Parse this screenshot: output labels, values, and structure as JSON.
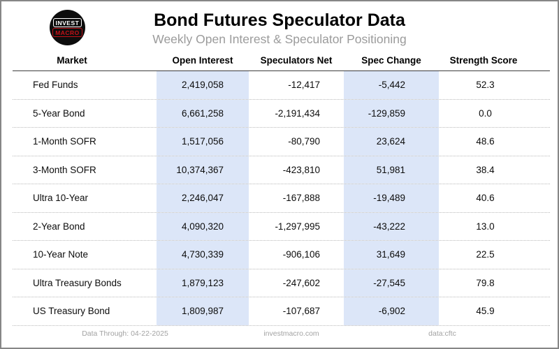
{
  "header": {
    "title": "Bond Futures Speculator Data",
    "subtitle": "Weekly Open Interest & Speculator Positioning",
    "logo": {
      "line1": "INVEST",
      "line2": "MACRO"
    }
  },
  "table": {
    "columns": [
      "Market",
      "Open Interest",
      "Speculators Net",
      "Spec Change",
      "Strength Score"
    ],
    "rows": [
      {
        "market": "Fed Funds",
        "open_interest": "2,419,058",
        "speculators_net": "-12,417",
        "spec_change": "-5,442",
        "strength_score": "52.3"
      },
      {
        "market": "5-Year Bond",
        "open_interest": "6,661,258",
        "speculators_net": "-2,191,434",
        "spec_change": "-129,859",
        "strength_score": "0.0"
      },
      {
        "market": "1-Month SOFR",
        "open_interest": "1,517,056",
        "speculators_net": "-80,790",
        "spec_change": "23,624",
        "strength_score": "48.6"
      },
      {
        "market": "3-Month SOFR",
        "open_interest": "10,374,367",
        "speculators_net": "-423,810",
        "spec_change": "51,981",
        "strength_score": "38.4"
      },
      {
        "market": "Ultra 10-Year",
        "open_interest": "2,246,047",
        "speculators_net": "-167,888",
        "spec_change": "-19,489",
        "strength_score": "40.6"
      },
      {
        "market": "2-Year Bond",
        "open_interest": "4,090,320",
        "speculators_net": "-1,297,995",
        "spec_change": "-43,222",
        "strength_score": "13.0"
      },
      {
        "market": "10-Year Note",
        "open_interest": "4,730,339",
        "speculators_net": "-906,106",
        "spec_change": "31,649",
        "strength_score": "22.5"
      },
      {
        "market": "Ultra Treasury Bonds",
        "open_interest": "1,879,123",
        "speculators_net": "-247,602",
        "spec_change": "-27,545",
        "strength_score": "79.8"
      },
      {
        "market": "US Treasury Bond",
        "open_interest": "1,809,987",
        "speculators_net": "-107,687",
        "spec_change": "-6,902",
        "strength_score": "45.9"
      }
    ]
  },
  "footer": {
    "data_through": "Data Through: 04-22-2025",
    "site": "investmacro.com",
    "source": "data:cftc"
  },
  "colors": {
    "highlight_column": "#dce6f8",
    "logo_red": "#c41118",
    "subtitle_gray": "#9b9b9b",
    "footer_gray": "#a2a2a2"
  }
}
